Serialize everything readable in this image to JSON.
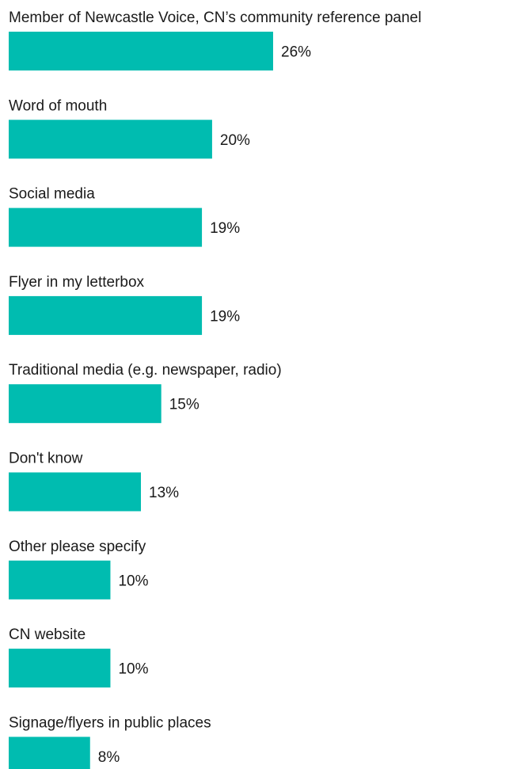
{
  "chart_data": {
    "type": "bar",
    "orientation": "horizontal",
    "title": "",
    "xlabel": "",
    "ylabel": "",
    "categories": [
      "Member of Newcastle Voice, CN’s community reference panel",
      "Word of mouth",
      "Social media",
      "Flyer in my letterbox",
      "Traditional media (e.g. newspaper, radio)",
      "Don't know",
      "Other please specify",
      "CN website",
      "Signage/flyers in public places"
    ],
    "values": [
      26,
      20,
      19,
      19,
      15,
      13,
      10,
      10,
      8
    ],
    "value_labels": [
      "26%",
      "20%",
      "19%",
      "19%",
      "15%",
      "13%",
      "10%",
      "10%",
      "8%"
    ],
    "unit": "%",
    "xlim": [
      0,
      26
    ],
    "grid": false,
    "legend": "none",
    "bar_color": "#00bcb0"
  }
}
